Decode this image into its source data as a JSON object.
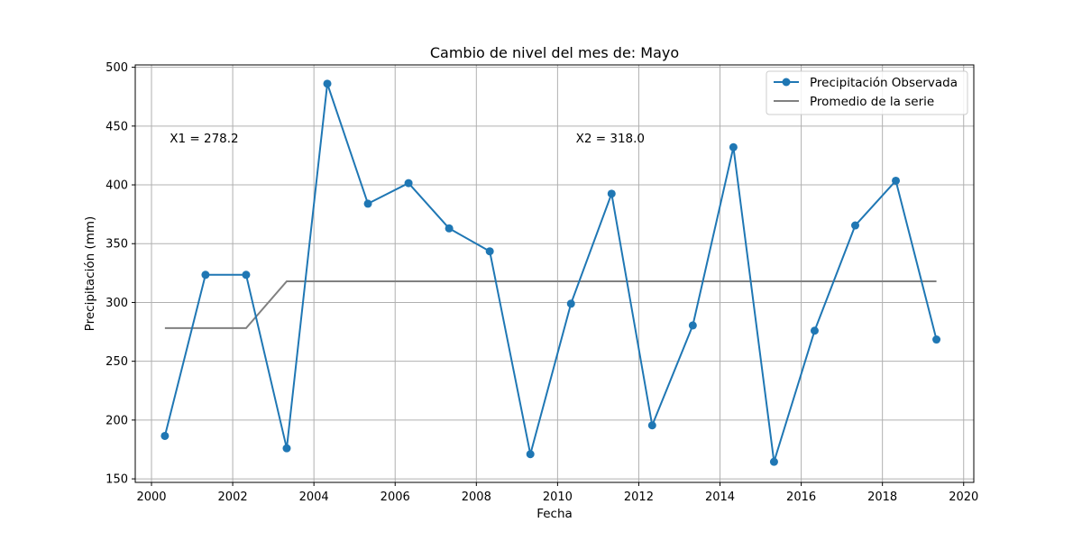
{
  "chart_data": {
    "type": "line",
    "title": "Cambio de nivel del mes de: Mayo",
    "xlabel": "Fecha",
    "ylabel": "Precipitación (mm)",
    "xlim": [
      1999.6,
      2020.25
    ],
    "ylim": [
      147,
      502
    ],
    "x_ticks": [
      2000,
      2002,
      2004,
      2006,
      2008,
      2010,
      2012,
      2014,
      2016,
      2018,
      2020
    ],
    "y_ticks": [
      150,
      200,
      250,
      300,
      350,
      400,
      450,
      500
    ],
    "grid": true,
    "legend_position": "top-right",
    "series": [
      {
        "name": "Precipitación Observada",
        "color": "#1f77b4",
        "marker": "circle",
        "x": [
          2000.33,
          2001.33,
          2002.33,
          2003.33,
          2004.33,
          2005.33,
          2006.33,
          2007.33,
          2008.33,
          2009.33,
          2010.33,
          2011.33,
          2012.33,
          2013.33,
          2014.33,
          2015.33,
          2016.33,
          2017.33,
          2018.33,
          2019.33
        ],
        "y": [
          186.5,
          323.5,
          323.5,
          176,
          486,
          384,
          401.5,
          363,
          343.5,
          171,
          299,
          392.5,
          195.5,
          280.5,
          432,
          164.5,
          276,
          365.5,
          403.5,
          268.5
        ]
      },
      {
        "name": "Promedio de la serie",
        "color": "#808080",
        "marker": "none",
        "x": [
          2000.33,
          2001.33,
          2002.33,
          2003.33,
          2004.33,
          2005.33,
          2006.33,
          2007.33,
          2008.33,
          2009.33,
          2010.33,
          2011.33,
          2012.33,
          2013.33,
          2014.33,
          2015.33,
          2016.33,
          2017.33,
          2018.33,
          2019.33
        ],
        "y": [
          278.2,
          278.2,
          278.2,
          318.0,
          318.0,
          318.0,
          318.0,
          318.0,
          318.0,
          318.0,
          318.0,
          318.0,
          318.0,
          318.0,
          318.0,
          318.0,
          318.0,
          318.0,
          318.0,
          318.0
        ]
      }
    ],
    "annotations": [
      {
        "text": "X1 = 278.2",
        "x": 2000.45,
        "y": 440
      },
      {
        "text": "X2 = 318.0",
        "x": 2010.45,
        "y": 440
      }
    ]
  }
}
